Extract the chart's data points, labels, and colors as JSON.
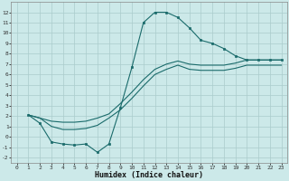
{
  "bg_color": "#cce9e9",
  "line_color": "#1a6b6b",
  "grid_color": "#b8d8d8",
  "xlabel": "Humidex (Indice chaleur)",
  "xlim": [
    -0.5,
    23.5
  ],
  "ylim": [
    -2.5,
    13.0
  ],
  "xticks": [
    0,
    1,
    2,
    3,
    4,
    5,
    6,
    7,
    8,
    9,
    10,
    11,
    12,
    13,
    14,
    15,
    16,
    17,
    18,
    19,
    20,
    21,
    22,
    23
  ],
  "yticks": [
    -2,
    -1,
    0,
    1,
    2,
    3,
    4,
    5,
    6,
    7,
    8,
    9,
    10,
    11,
    12
  ],
  "line1_x": [
    1,
    2,
    3,
    4,
    5,
    6,
    7,
    8,
    9,
    10,
    11,
    12,
    13,
    14,
    15,
    16,
    17,
    18,
    19,
    20,
    21,
    22,
    23
  ],
  "line1_y": [
    2.1,
    1.8,
    1.5,
    1.4,
    1.4,
    1.5,
    1.8,
    2.2,
    3.2,
    4.3,
    5.5,
    6.5,
    7.0,
    7.3,
    7.0,
    6.9,
    6.9,
    6.9,
    7.1,
    7.4,
    7.4,
    7.4,
    7.4
  ],
  "line2_x": [
    1,
    2,
    3,
    4,
    5,
    6,
    7,
    8,
    9,
    10,
    11,
    12,
    13,
    14,
    15,
    16,
    17,
    18,
    19,
    20,
    21,
    22,
    23
  ],
  "line2_y": [
    2.1,
    1.8,
    1.0,
    0.7,
    0.7,
    0.8,
    1.1,
    1.8,
    2.6,
    3.7,
    4.9,
    6.0,
    6.5,
    6.9,
    6.5,
    6.4,
    6.4,
    6.4,
    6.6,
    6.9,
    6.9,
    6.9,
    6.9
  ],
  "line3_x": [
    1,
    2,
    3,
    4,
    5,
    6,
    7,
    8,
    9,
    10,
    11,
    12,
    13,
    14,
    15,
    16,
    17,
    18,
    19,
    20,
    21,
    22,
    23
  ],
  "line3_y": [
    2.1,
    1.3,
    -0.5,
    -0.7,
    -0.8,
    -0.7,
    -1.5,
    -0.7,
    2.8,
    6.7,
    11.0,
    12.0,
    12.0,
    11.5,
    10.5,
    9.3,
    9.0,
    8.5,
    7.8,
    7.4,
    7.4,
    7.4,
    7.4
  ]
}
